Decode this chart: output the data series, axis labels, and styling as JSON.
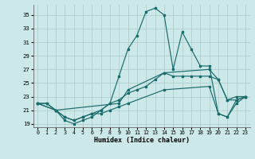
{
  "xlabel": "Humidex (Indice chaleur)",
  "bg_color": "#cce8e8",
  "grid_color": "#aacccc",
  "line_color": "#1a6b6b",
  "xlim": [
    -0.5,
    23.5
  ],
  "ylim": [
    18.5,
    36.5
  ],
  "yticks": [
    19,
    21,
    23,
    25,
    27,
    29,
    31,
    33,
    35
  ],
  "xticks": [
    0,
    1,
    2,
    3,
    4,
    5,
    6,
    7,
    8,
    9,
    10,
    11,
    12,
    13,
    14,
    15,
    16,
    17,
    18,
    19,
    20,
    21,
    22,
    23
  ],
  "series": {
    "spiky_x": [
      0,
      1,
      2,
      3,
      4,
      5,
      6,
      7,
      8,
      9,
      10,
      11,
      12,
      13,
      14,
      15,
      16,
      17,
      18,
      19,
      20,
      21,
      22,
      23
    ],
    "spiky_y": [
      22,
      22,
      21,
      19.5,
      19,
      19.5,
      20,
      21,
      22,
      26,
      30,
      32,
      35.5,
      36,
      35,
      27,
      32.5,
      30,
      27.5,
      27.5,
      20.5,
      20,
      22.5,
      23
    ],
    "diag_x": [
      0,
      1,
      2,
      3,
      4,
      5,
      6,
      7,
      8,
      9,
      10,
      11,
      12,
      13,
      14,
      15,
      16,
      17,
      18,
      19,
      20,
      21,
      22,
      23
    ],
    "diag_y": [
      22,
      22,
      21,
      20,
      19.5,
      20,
      20.5,
      21,
      22,
      22.5,
      23.5,
      24,
      24.5,
      25.5,
      26.5,
      26,
      26,
      26,
      26,
      26,
      25.5,
      22.5,
      23,
      23
    ],
    "upper_x": [
      0,
      2,
      9,
      10,
      14,
      19,
      20,
      21,
      22,
      23
    ],
    "upper_y": [
      22,
      21,
      22,
      24,
      26.5,
      27,
      25.5,
      22.5,
      22.5,
      23
    ],
    "lower_x": [
      0,
      2,
      3,
      4,
      5,
      6,
      7,
      8,
      9,
      10,
      14,
      19,
      20,
      21,
      22,
      23
    ],
    "lower_y": [
      22,
      21,
      20,
      19.5,
      20,
      20.5,
      20.5,
      21,
      21.5,
      22,
      24,
      24.5,
      20.5,
      20,
      22,
      23
    ]
  }
}
